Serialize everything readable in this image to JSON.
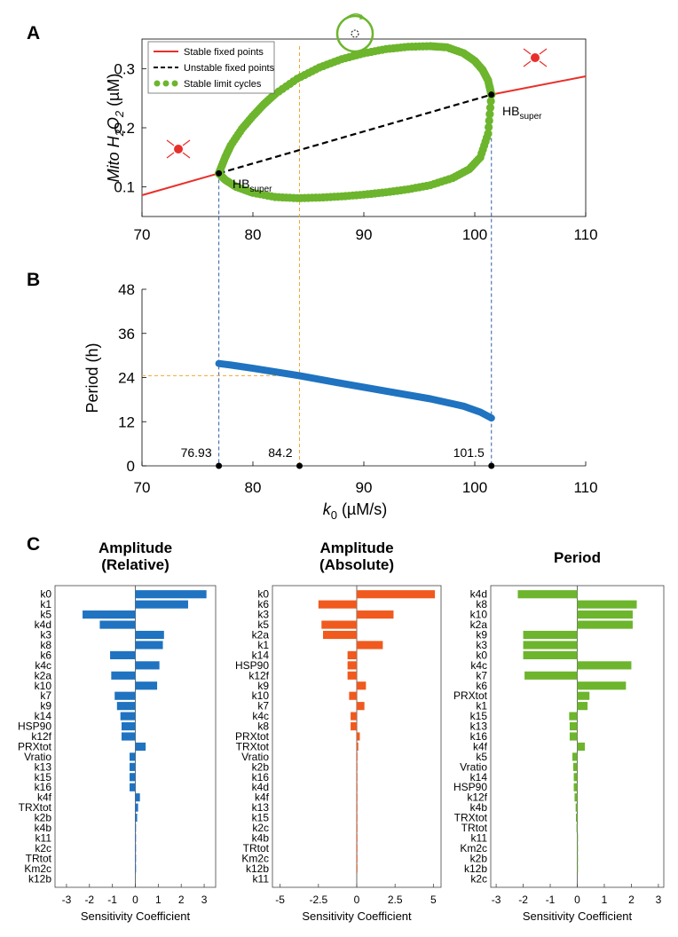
{
  "chart_data": [
    {
      "panel": "A",
      "type": "line",
      "ylabel_prefix": "Mito H",
      "ylabel_sub1": "2",
      "ylabel_mid": "O",
      "ylabel_sub2": "2",
      "ylabel_suffix": " (µM)",
      "xlim": [
        70,
        110
      ],
      "ylim": [
        0.05,
        0.35
      ],
      "xticks": [
        70,
        80,
        90,
        100,
        110
      ],
      "yticks": [
        0.1,
        0.2,
        0.3
      ],
      "ytick_labels": [
        "0.1",
        "0.2",
        "0.3"
      ],
      "legend": [
        "Stable fixed points",
        "Unstable fixed points",
        "Stable limit cycles"
      ],
      "legend_placement": "top-left",
      "colors": {
        "stable": "#e8302a",
        "unstable": "#000000",
        "limit": "#6cb52d",
        "guide_blue": "#2f5fa8",
        "guide_orange": "#f0a830"
      },
      "stable_fixed_points": [
        {
          "x": [
            70,
            76.93
          ],
          "y": [
            0.086,
            0.123
          ]
        },
        {
          "x": [
            101.5,
            110
          ],
          "y": [
            0.256,
            0.287
          ]
        }
      ],
      "unstable_fixed_points": {
        "x": [
          76.93,
          101.5
        ],
        "y": [
          0.123,
          0.256
        ]
      },
      "limit_cycle_upper": {
        "x": [
          76.93,
          77.5,
          78,
          79,
          80,
          81,
          82,
          84,
          86,
          88,
          90,
          92,
          94,
          96,
          97.5,
          99,
          100,
          100.7,
          101.2,
          101.5
        ],
        "y": [
          0.123,
          0.15,
          0.17,
          0.198,
          0.22,
          0.24,
          0.257,
          0.283,
          0.302,
          0.316,
          0.326,
          0.333,
          0.337,
          0.338,
          0.336,
          0.326,
          0.313,
          0.298,
          0.28,
          0.256
        ]
      },
      "limit_cycle_lower": {
        "x": [
          76.93,
          77.5,
          78.5,
          80,
          82,
          84,
          86,
          88,
          90,
          92,
          94,
          96,
          98,
          99.5,
          100.5,
          101.2,
          101.5
        ],
        "y": [
          0.123,
          0.112,
          0.1,
          0.09,
          0.083,
          0.081,
          0.082,
          0.084,
          0.087,
          0.091,
          0.096,
          0.103,
          0.115,
          0.13,
          0.15,
          0.19,
          0.256
        ]
      },
      "annotations": [
        {
          "text": "HB",
          "sub": "super",
          "x": 76.93,
          "y": 0.123
        },
        {
          "text": "HB",
          "sub": "super",
          "x": 101.5,
          "y": 0.256
        }
      ]
    },
    {
      "panel": "B",
      "type": "line",
      "xlabel_main": "k",
      "xlabel_sub": "0",
      "xlabel_suffix": " (µM/s)",
      "ylabel": "Period (h)",
      "xlim": [
        70,
        110
      ],
      "ylim": [
        0,
        48
      ],
      "xticks": [
        70,
        80,
        90,
        100,
        110
      ],
      "yticks": [
        0,
        12,
        24,
        36,
        48
      ],
      "series": [
        {
          "x": [
            76.93,
            78,
            80,
            84.2,
            88,
            92,
            96,
            99,
            100.5,
            101.5
          ],
          "y": [
            27.8,
            27.4,
            26.5,
            24.5,
            22.4,
            20.3,
            18.2,
            16.2,
            14.6,
            13.0
          ]
        }
      ],
      "marked_points": [
        76.93,
        84.2,
        101.5
      ],
      "marked_labels": [
        "76.93",
        "84.2",
        "101.5"
      ],
      "guide_y": 24.5
    },
    {
      "panel": "C",
      "type": "bar",
      "title_line1": "Amplitude",
      "title_line2": "(Relative)",
      "xlabel": "Sensitivity Coefficient",
      "xlim": [
        -3.5,
        3.5
      ],
      "xticks": [
        -3,
        -2,
        -1,
        0,
        1,
        2,
        3
      ],
      "xtick_labels": [
        "-3",
        "-2",
        "-1",
        "0",
        "1",
        "2",
        "3"
      ],
      "color": "#1f73c0",
      "categories": [
        "k0",
        "k1",
        "k5",
        "k4d",
        "k3",
        "k8",
        "k6",
        "k4c",
        "k2a",
        "k10",
        "k7",
        "k9",
        "k14",
        "HSP90",
        "k12f",
        "PRXtot",
        "Vratio",
        "k13",
        "k15",
        "k16",
        "k4f",
        "TRXtot",
        "k2b",
        "k4b",
        "k11",
        "k2c",
        "TRtot",
        "Km2c",
        "k12b"
      ],
      "values": [
        3.1,
        2.3,
        -2.3,
        -1.55,
        1.25,
        1.2,
        -1.1,
        1.05,
        -1.05,
        0.95,
        -0.9,
        -0.8,
        -0.65,
        -0.6,
        -0.6,
        0.45,
        -0.25,
        -0.25,
        -0.25,
        -0.25,
        0.2,
        0.12,
        0.08,
        0.03,
        0.02,
        0.02,
        0.01,
        0.01,
        0.0
      ]
    },
    {
      "panel": "C",
      "type": "bar",
      "title_line1": "Amplitude",
      "title_line2": "(Absolute)",
      "xlabel": "Sensitivity Coefficient",
      "xlim": [
        -5.5,
        5.5
      ],
      "xticks": [
        -5,
        -2.5,
        0,
        2.5,
        5
      ],
      "xtick_labels": [
        "-5",
        "-2.5",
        "0",
        "2.5",
        "5"
      ],
      "color": "#f05a1e",
      "categories": [
        "k0",
        "k6",
        "k3",
        "k5",
        "k2a",
        "k1",
        "k14",
        "HSP90",
        "k12f",
        "k9",
        "k10",
        "k7",
        "k4c",
        "k8",
        "PRXtot",
        "TRXtot",
        "Vratio",
        "k2b",
        "k16",
        "k4d",
        "k4f",
        "k13",
        "k15",
        "k2c",
        "k4b",
        "TRtot",
        "Km2c",
        "k12b",
        "k11"
      ],
      "values": [
        5.1,
        -2.5,
        2.4,
        -2.3,
        -2.2,
        1.7,
        -0.6,
        -0.6,
        -0.6,
        0.6,
        -0.5,
        0.5,
        -0.4,
        -0.4,
        0.2,
        0.1,
        0.05,
        0.04,
        0.04,
        0.03,
        0.03,
        0.02,
        0.02,
        0.02,
        0.02,
        0.01,
        0.01,
        0.01,
        0.0
      ]
    },
    {
      "panel": "C",
      "type": "bar",
      "title_line1": "Period",
      "title_line2": "",
      "xlabel": "Sensitivity Coefficient",
      "xlim": [
        -3.2,
        3.2
      ],
      "xticks": [
        -3,
        -2,
        -1,
        0,
        1,
        2,
        3
      ],
      "xtick_labels": [
        "-3",
        "-2",
        "-1",
        "0",
        "1",
        "2",
        "3"
      ],
      "color": "#6cb52d",
      "categories": [
        "k4d",
        "k8",
        "k10",
        "k2a",
        "k9",
        "k3",
        "k0",
        "k4c",
        "k7",
        "k6",
        "PRXtot",
        "k1",
        "k15",
        "k13",
        "k16",
        "k4f",
        "k5",
        "Vratio",
        "k14",
        "HSP90",
        "k12f",
        "k4b",
        "TRXtot",
        "TRtot",
        "k11",
        "Km2c",
        "k2b",
        "k12b",
        "k2c"
      ],
      "values": [
        -2.2,
        2.2,
        2.05,
        2.05,
        -2.0,
        -2.0,
        -2.0,
        2.0,
        -1.95,
        1.8,
        0.45,
        0.38,
        -0.3,
        -0.28,
        -0.28,
        0.28,
        -0.18,
        -0.15,
        -0.13,
        -0.13,
        -0.1,
        -0.06,
        -0.05,
        -0.03,
        0.02,
        0.02,
        0.01,
        0.01,
        0.0
      ]
    }
  ],
  "labels": {
    "panel_a": "A",
    "panel_b": "B",
    "panel_c": "C"
  }
}
